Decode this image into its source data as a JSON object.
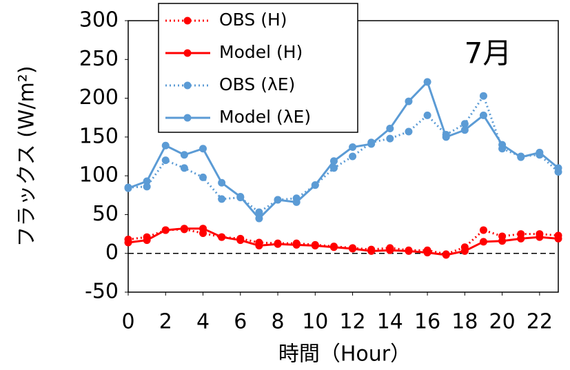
{
  "chart_data": {
    "type": "line",
    "y_label": "フラックス (W/m²)",
    "x_label": "時間（Hour）",
    "annotation": "7月",
    "x": [
      0,
      1,
      2,
      3,
      4,
      5,
      6,
      7,
      8,
      9,
      10,
      11,
      12,
      13,
      14,
      15,
      16,
      17,
      18,
      19,
      20,
      21,
      22,
      23
    ],
    "xlim": [
      0,
      23
    ],
    "xticks": [
      0,
      2,
      4,
      6,
      8,
      10,
      12,
      14,
      16,
      18,
      20,
      22
    ],
    "ylim": [
      -50,
      300
    ],
    "yticks": [
      -50,
      0,
      50,
      100,
      150,
      200,
      250,
      300
    ],
    "reference_line": 0,
    "legend": "upper left",
    "series": [
      {
        "name": "OBS (H)",
        "color": "#ff0000",
        "linestyle": "dotted",
        "values": [
          18,
          21,
          30,
          31,
          26,
          21,
          19,
          14,
          13,
          13,
          11,
          9,
          7,
          5,
          7,
          4,
          4,
          -1,
          8,
          30,
          22,
          25,
          25,
          23
        ]
      },
      {
        "name": "Model (H)",
        "color": "#ff0000",
        "linestyle": "solid",
        "values": [
          14,
          17,
          30,
          32,
          32,
          21,
          17,
          10,
          12,
          11,
          10,
          8,
          6,
          3,
          4,
          3,
          1,
          -2,
          3,
          15,
          16,
          19,
          21,
          19
        ]
      },
      {
        "name": "OBS (λE)",
        "color": "#5b9bd5",
        "linestyle": "dotted",
        "values": [
          85,
          86,
          120,
          110,
          98,
          70,
          72,
          53,
          69,
          71,
          88,
          110,
          125,
          143,
          148,
          157,
          178,
          153,
          167,
          203,
          135,
          125,
          127,
          105
        ]
      },
      {
        "name": "Model (λE)",
        "color": "#5b9bd5",
        "linestyle": "solid",
        "values": [
          84,
          93,
          139,
          127,
          135,
          91,
          73,
          45,
          69,
          66,
          88,
          119,
          137,
          141,
          161,
          196,
          221,
          150,
          159,
          178,
          140,
          124,
          130,
          110
        ]
      }
    ]
  }
}
